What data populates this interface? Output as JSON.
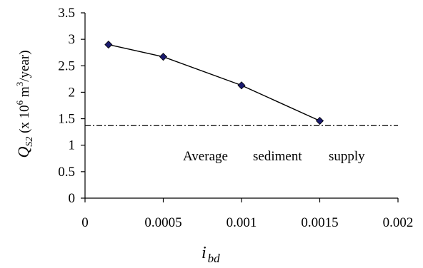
{
  "chart_data": {
    "type": "line",
    "title": "",
    "xlabel": "i",
    "xlabel_subscript": "bd",
    "ylabel": {
      "q": "Q",
      "q_sub": "S2",
      "pre": " (x 10",
      "exp6": "6",
      "mid": " m",
      "exp3": "3",
      "post": "/year)"
    },
    "xlim": [
      0,
      0.002
    ],
    "ylim": [
      0,
      3.5
    ],
    "xticks": [
      "0",
      "0.0005",
      "0.001",
      "0.0015",
      "0.002"
    ],
    "xtick_values": [
      0,
      0.0005,
      0.001,
      0.0015,
      0.002
    ],
    "yticks": [
      "0",
      "0.5",
      "1",
      "1.5",
      "2",
      "2.5",
      "3",
      "3.5"
    ],
    "ytick_values": [
      0,
      0.5,
      1,
      1.5,
      2,
      2.5,
      3,
      3.5
    ],
    "series": [
      {
        "x": [
          0.00015,
          0.0005,
          0.001,
          0.0015
        ],
        "y": [
          2.9,
          2.67,
          2.13,
          1.46
        ],
        "marker": "diamond",
        "color": "#000000",
        "marker_color": "#1a1a6e"
      }
    ],
    "reference_line": {
      "y": 1.37,
      "style": "dash-dot",
      "x_range": [
        0,
        0.002
      ]
    },
    "annotation": {
      "words": [
        "Average",
        "sediment",
        "supply"
      ]
    },
    "grid": false,
    "legend": "none"
  }
}
